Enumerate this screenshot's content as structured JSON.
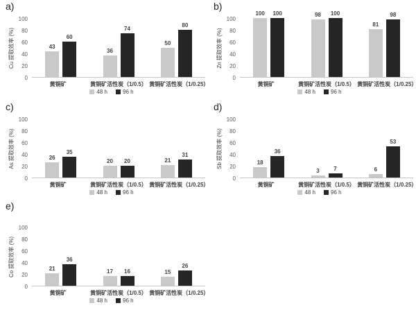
{
  "figure": {
    "background": "#ffffff",
    "bar_colors": {
      "series_48h": "#c9c9c9",
      "series_96h": "#252525"
    },
    "axis_line_color": "#c6c6c6",
    "categories": [
      "黄铜矿",
      "黄铜矿活性炭（1/0.5）",
      "黄铜矿活性炭（1/0.25）"
    ],
    "legend": {
      "items": [
        {
          "label": "48 h",
          "color": "#c9c9c9"
        },
        {
          "label": "96 h",
          "color": "#252525"
        }
      ],
      "position": "bottom"
    }
  },
  "chart_data": [
    {
      "id": "a",
      "panel_label": "a)",
      "type": "bar",
      "ylabel": "Cu 提取效率 (%)",
      "xlabel": "",
      "ylim": [
        0,
        100
      ],
      "yticks": [
        0,
        20,
        40,
        60,
        80,
        100
      ],
      "grid": false,
      "categories": [
        "黄铜矿",
        "黄铜矿活性炭（1/0.5）",
        "黄铜矿活性炭（1/0.25）"
      ],
      "series": [
        {
          "name": "48 h",
          "color": "#c9c9c9",
          "values": [
            43,
            36,
            50
          ]
        },
        {
          "name": "96 h",
          "color": "#252525",
          "values": [
            60,
            74,
            80
          ]
        }
      ],
      "legend_position": "bottom"
    },
    {
      "id": "b",
      "panel_label": "b)",
      "type": "bar",
      "ylabel": "Zn 提取效率 (%)",
      "xlabel": "",
      "ylim": [
        0,
        100
      ],
      "yticks": [
        0,
        20,
        40,
        60,
        80,
        100
      ],
      "grid": false,
      "categories": [
        "黄铜矿",
        "黄铜矿活性炭（1/0.5）",
        "黄铜矿活性炭（1/0.25）"
      ],
      "series": [
        {
          "name": "48 h",
          "color": "#c9c9c9",
          "values": [
            100,
            98,
            81
          ]
        },
        {
          "name": "96 h",
          "color": "#252525",
          "values": [
            100,
            100,
            98
          ]
        }
      ],
      "legend_position": "bottom"
    },
    {
      "id": "c",
      "panel_label": "c)",
      "type": "bar",
      "ylabel": "As 提取效率 (%)",
      "xlabel": "",
      "ylim": [
        0,
        100
      ],
      "yticks": [
        0,
        20,
        40,
        60,
        80,
        100
      ],
      "grid": false,
      "categories": [
        "黄铜矿",
        "黄铜矿活性炭（1/0.5）",
        "黄铜矿活性炭（1/0.25）"
      ],
      "series": [
        {
          "name": "48 h",
          "color": "#c9c9c9",
          "values": [
            26,
            20,
            21
          ]
        },
        {
          "name": "96 h",
          "color": "#252525",
          "values": [
            35,
            20,
            31
          ]
        }
      ],
      "legend_position": "bottom"
    },
    {
      "id": "d",
      "panel_label": "d)",
      "type": "bar",
      "ylabel": "Sb 提取效率 (%)",
      "xlabel": "",
      "ylim": [
        0,
        100
      ],
      "yticks": [
        0,
        20,
        40,
        60,
        80,
        100
      ],
      "grid": false,
      "categories": [
        "黄铜矿",
        "黄铜矿活性炭（1/0.5）",
        "黄铜矿活性炭（1/0.25）"
      ],
      "series": [
        {
          "name": "48 h",
          "color": "#c9c9c9",
          "values": [
            18,
            3,
            6
          ]
        },
        {
          "name": "96 h",
          "color": "#252525",
          "values": [
            36,
            7,
            53
          ]
        }
      ],
      "legend_position": "bottom"
    },
    {
      "id": "e",
      "panel_label": "e)",
      "type": "bar",
      "ylabel": "Co 提取效率 (%)",
      "xlabel": "",
      "ylim": [
        0,
        100
      ],
      "yticks": [
        0,
        20,
        40,
        60,
        80,
        100
      ],
      "grid": false,
      "categories": [
        "黄铜矿",
        "黄铜矿活性炭（1/0.5）",
        "黄铜矿活性炭（1/0.25）"
      ],
      "series": [
        {
          "name": "48 h",
          "color": "#c9c9c9",
          "values": [
            21,
            17,
            15
          ]
        },
        {
          "name": "96 h",
          "color": "#252525",
          "values": [
            36,
            16,
            26
          ]
        }
      ],
      "legend_position": "bottom"
    }
  ]
}
